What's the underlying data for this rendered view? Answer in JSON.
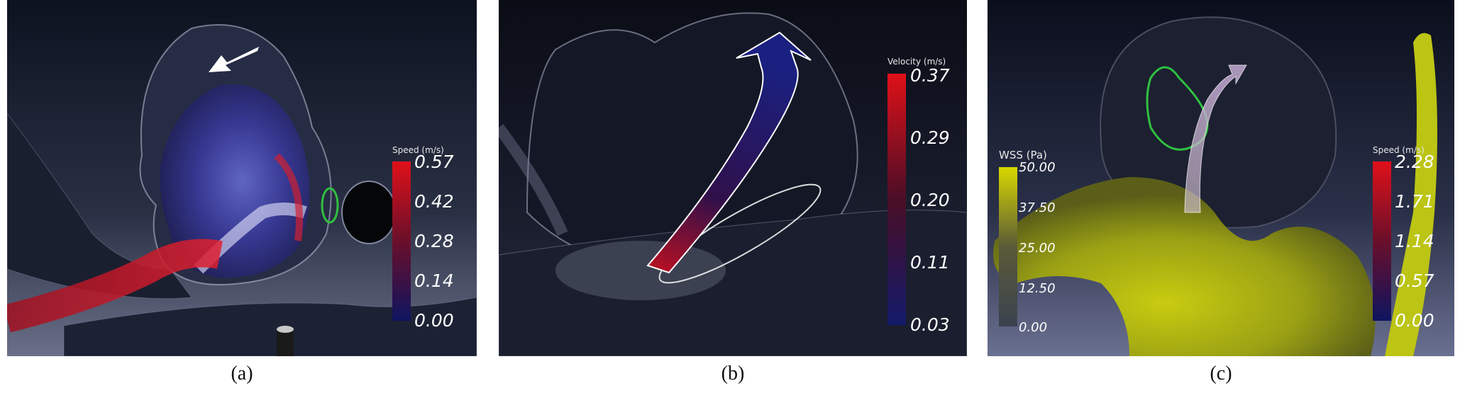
{
  "panels": [
    {
      "caption": "(a)",
      "colorbar": {
        "title": "Speed (m/s)",
        "ticks": [
          "0.57",
          "0.42",
          "0.28",
          "0.14",
          "0.00"
        ],
        "colors": [
          "#e0101a",
          "#6a0f2a",
          "#0e1460"
        ]
      }
    },
    {
      "caption": "(b)",
      "colorbar": {
        "title": "Velocity (m/s)",
        "ticks": [
          "0.37",
          "0.29",
          "0.20",
          "0.11",
          "0.03"
        ],
        "colors": [
          "#e01018",
          "#4a0e26",
          "#121a6a"
        ]
      }
    },
    {
      "caption": "(c)",
      "colorbar_wss": {
        "title": "WSS (Pa)",
        "ticks": [
          "50.00",
          "37.50",
          "25.00",
          "12.50",
          "0.00"
        ],
        "colors": [
          "#d8d800",
          "#5a5a38",
          "#3a4250"
        ]
      },
      "colorbar_speed": {
        "title": "Speed (m/s)",
        "ticks": [
          "2.28",
          "1.71",
          "1.14",
          "0.57",
          "0.00"
        ],
        "colors": [
          "#e0101a",
          "#6a0f2a",
          "#0e1460"
        ]
      }
    }
  ]
}
